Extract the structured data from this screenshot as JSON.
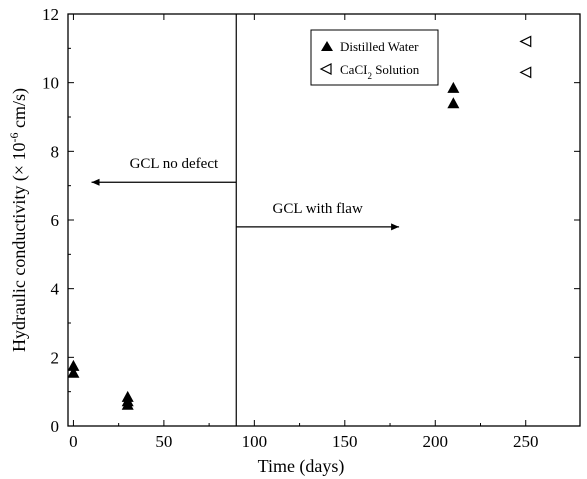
{
  "chart_data": {
    "type": "scatter",
    "xlabel": "Time (days)",
    "ylabel_main": "Hydraulic conductivity (× 10",
    "ylabel_exp": "-6",
    "ylabel_tail": " cm/s)",
    "xlim": [
      -3,
      280
    ],
    "ylim": [
      0,
      12
    ],
    "xticks": [
      0,
      50,
      100,
      150,
      200,
      250
    ],
    "yticks": [
      0,
      2,
      4,
      6,
      8,
      10,
      12
    ],
    "grid": false,
    "legend_position": "top-right, boxed",
    "series": [
      {
        "name": "Distilled Water",
        "marker": "filled-triangle",
        "color": "#000000",
        "points": [
          {
            "x": 0,
            "y": 1.75
          },
          {
            "x": 0,
            "y": 1.55
          },
          {
            "x": 30,
            "y": 0.85
          },
          {
            "x": 30,
            "y": 0.72
          },
          {
            "x": 30,
            "y": 0.62
          },
          {
            "x": 210,
            "y": 9.85
          },
          {
            "x": 210,
            "y": 9.4
          }
        ]
      },
      {
        "name_main": "CaCI",
        "name_sub": "2",
        "name_tail": " Solution",
        "marker": "open-left-triangle",
        "color": "#000000",
        "points": [
          {
            "x": 250,
            "y": 11.2
          },
          {
            "x": 250,
            "y": 10.3
          }
        ]
      }
    ],
    "annotations": [
      {
        "id": "divider",
        "kind": "vertical-line",
        "x": 90
      },
      {
        "id": "no_defect",
        "text": "GCL no defect",
        "arrow": "left",
        "arrow_from": 90,
        "arrow_to": 10,
        "y": 7.1
      },
      {
        "id": "flaw",
        "text": "GCL with flaw",
        "arrow": "right",
        "arrow_from": 90,
        "arrow_to": 180,
        "y": 5.8
      }
    ]
  }
}
